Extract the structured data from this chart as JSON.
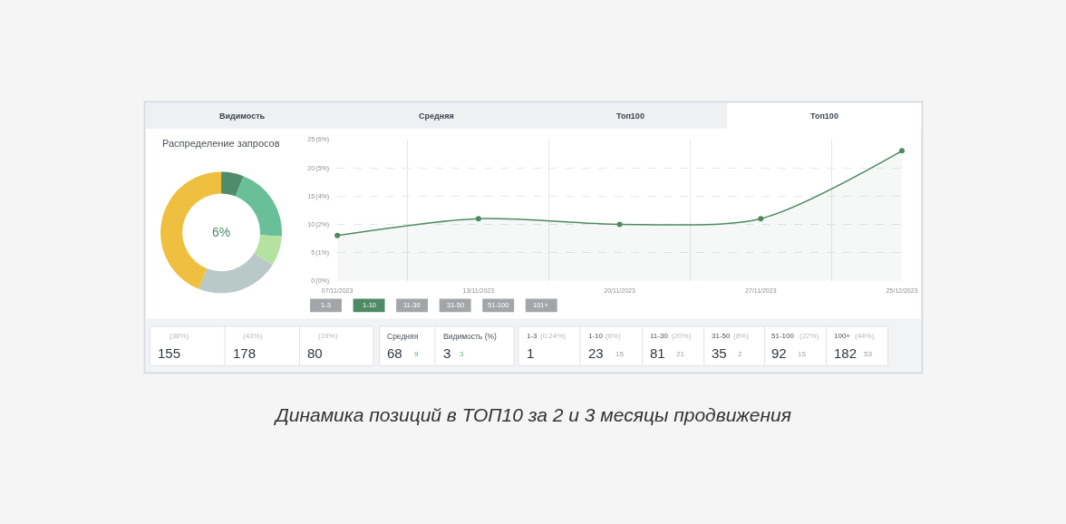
{
  "chart_data": [
    {
      "type": "other",
      "annotations": [
        "Видимость",
        "Средняя",
        "Топ100",
        "Топ100"
      ],
      "colors": [
        "#eef0f2",
        "#eef0f2",
        "#eef0f2",
        "#ffffff"
      ]
    },
    {
      "type": "donut",
      "title": "Распределение запросов",
      "categories": [
        null,
        null,
        null,
        null,
        null
      ],
      "values": [
        6,
        20,
        8,
        22,
        44
      ],
      "colors": [
        "#4f8c69",
        "#68bf98",
        "#b6e2a1",
        "#b9c9c8",
        "#efc040"
      ],
      "annotations": [
        "6%"
      ]
    },
    {
      "type": "area",
      "categories": [
        "07/11/2023",
        "13/11/2023",
        "20/11/2023",
        "27/11/2023",
        "25/12/2023"
      ],
      "values": [
        8,
        11,
        10,
        11,
        23
      ],
      "color": "#4e8a63",
      "ylim": [
        0,
        25
      ],
      "yticks": [
        0,
        5,
        10,
        15,
        20,
        25
      ],
      "y2lim": [
        0,
        6.05
      ],
      "y2ticks": [
        {
          "value": 0,
          "label": "(0%)"
        },
        {
          "value": 1.21,
          "label": "(1%)"
        },
        {
          "value": 2.42,
          "label": "(2%)"
        },
        {
          "value": 3.63,
          "label": "(4%)"
        },
        {
          "value": 4.84,
          "label": "(5%)"
        },
        {
          "value": 6.05,
          "label": "(6%)"
        }
      ],
      "grid": true,
      "marker": "circle"
    },
    {
      "type": "other",
      "annotations": [
        "1-3",
        "1-10",
        "11-30",
        "31-50",
        "51-100",
        "101+"
      ],
      "colors": [
        "#a3a6a8",
        "#4e8a63",
        "#a3a6a8",
        "#a3a6a8",
        "#a3a6a8",
        "#a3a6a8"
      ]
    },
    {
      "type": "other",
      "annotations": [
        "(38%)",
        "155",
        "(43%)",
        "178",
        "(19%)",
        "80",
        "Средняя",
        "68",
        "9",
        "Видимость (%)",
        "3",
        "3",
        "1-3",
        "(0.24%)",
        "1",
        "1-10",
        "(6%)",
        "23",
        "15",
        "11-30",
        "(20%)",
        "81",
        "21",
        "31-50",
        "(8%)",
        "35",
        "2",
        "51-100",
        "(22%)",
        "92",
        "15",
        "100+",
        "(44%)",
        "182",
        "53"
      ]
    },
    {
      "type": "other",
      "annotations": [
        "Динамика позиций в ТОП10 за 2 и 3 месяцы продвижения"
      ]
    }
  ]
}
